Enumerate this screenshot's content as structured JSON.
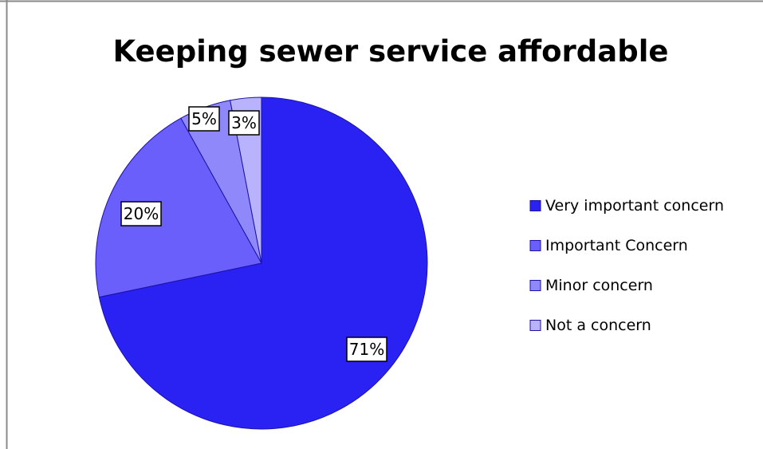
{
  "chart_data": {
    "type": "pie",
    "title": "Keeping sewer service affordable",
    "slices": [
      {
        "label": "Very important concern",
        "value": 71,
        "display": "71%",
        "color": "#2a22f2"
      },
      {
        "label": "Important Concern",
        "value": 20,
        "display": "20%",
        "color": "#6a5ffb"
      },
      {
        "label": "Minor concern",
        "value": 5,
        "display": "5%",
        "color": "#8f88fb"
      },
      {
        "label": "Not a concern",
        "value": 3,
        "display": "3%",
        "color": "#b8b3fc"
      }
    ],
    "start": "12 o'clock",
    "direction": "clockwise",
    "legend_position": "right"
  },
  "colors": {
    "slice_stroke": "#1a12a8",
    "frame_border": "#8a8a8a",
    "label_border": "#000000"
  }
}
